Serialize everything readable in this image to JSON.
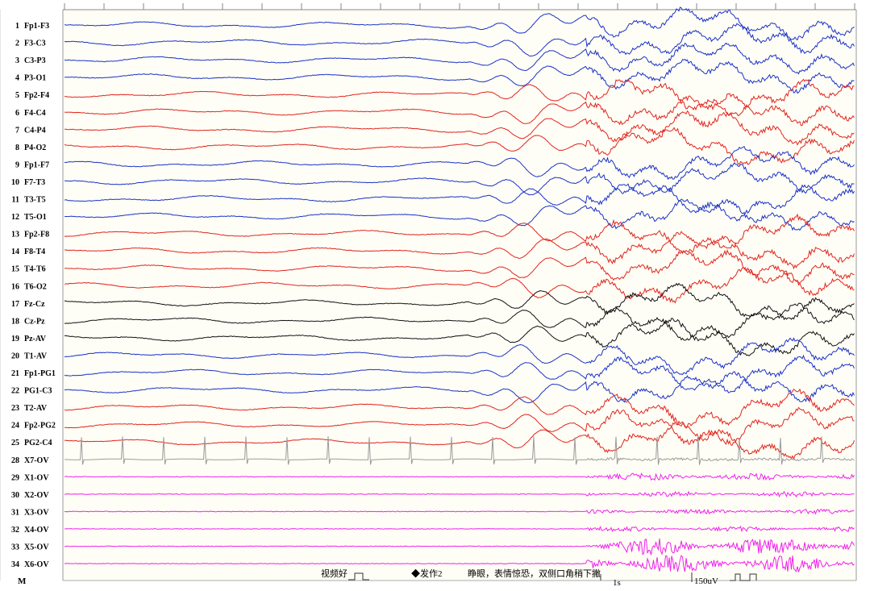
{
  "channels": [
    {
      "num": "1",
      "label": "Fp1-F3",
      "color": "#1a32c8"
    },
    {
      "num": "2",
      "label": "F3-C3",
      "color": "#1a32c8"
    },
    {
      "num": "3",
      "label": "C3-P3",
      "color": "#1a32c8"
    },
    {
      "num": "4",
      "label": "P3-O1",
      "color": "#1a32c8"
    },
    {
      "num": "5",
      "label": "Fp2-F4",
      "color": "#e0251e"
    },
    {
      "num": "6",
      "label": "F4-C4",
      "color": "#e0251e"
    },
    {
      "num": "7",
      "label": "C4-P4",
      "color": "#e0251e"
    },
    {
      "num": "8",
      "label": "P4-O2",
      "color": "#e0251e"
    },
    {
      "num": "9",
      "label": "Fp1-F7",
      "color": "#1a32c8"
    },
    {
      "num": "10",
      "label": "F7-T3",
      "color": "#1a32c8"
    },
    {
      "num": "11",
      "label": "T3-T5",
      "color": "#1a32c8"
    },
    {
      "num": "12",
      "label": "T5-O1",
      "color": "#1a32c8"
    },
    {
      "num": "13",
      "label": "Fp2-F8",
      "color": "#e0251e"
    },
    {
      "num": "14",
      "label": "F8-T4",
      "color": "#e0251e"
    },
    {
      "num": "15",
      "label": "T4-T6",
      "color": "#e0251e"
    },
    {
      "num": "16",
      "label": "T6-O2",
      "color": "#e0251e"
    },
    {
      "num": "17",
      "label": "Fz-Cz",
      "color": "#111111"
    },
    {
      "num": "18",
      "label": "Cz-Pz",
      "color": "#111111"
    },
    {
      "num": "19",
      "label": "Pz-AV",
      "color": "#111111"
    },
    {
      "num": "20",
      "label": "T1-AV",
      "color": "#1a32c8"
    },
    {
      "num": "21",
      "label": "Fp1-PG1",
      "color": "#1a32c8"
    },
    {
      "num": "22",
      "label": "PG1-C3",
      "color": "#1a32c8"
    },
    {
      "num": "23",
      "label": "T2-AV",
      "color": "#e0251e"
    },
    {
      "num": "24",
      "label": "Fp2-PG2",
      "color": "#e0251e"
    },
    {
      "num": "25",
      "label": "PG2-C4",
      "color": "#e0251e"
    },
    {
      "num": "28",
      "label": "X7-OV",
      "color": "#9a9a9a"
    },
    {
      "num": "29",
      "label": "X1-OV",
      "color": "#ee22ee"
    },
    {
      "num": "30",
      "label": "X2-OV",
      "color": "#ee22ee"
    },
    {
      "num": "31",
      "label": "X3-OV",
      "color": "#ee22ee"
    },
    {
      "num": "32",
      "label": "X4-OV",
      "color": "#ee22ee"
    },
    {
      "num": "33",
      "label": "X5-OV",
      "color": "#ee22ee"
    },
    {
      "num": "34",
      "label": "X6-OV",
      "color": "#ee22ee"
    }
  ],
  "bottom_row": {
    "marker_label": "M",
    "annotations": [
      {
        "id": "annot-video",
        "text": "视频好"
      },
      {
        "id": "annot-seizure",
        "text": "◆发作2"
      },
      {
        "id": "annot-description",
        "text": "睁眼，表情惊恐，双侧口角稍下撇"
      }
    ],
    "time_scale": "1s",
    "amplitude_scale": "150uV"
  },
  "colors": {
    "left_hemisphere": "#1a32c8",
    "right_hemisphere": "#e0251e",
    "midline": "#111111",
    "ecg": "#9a9a9a",
    "emg": "#ee22ee",
    "background": "#fffef6"
  },
  "chart_data": {
    "type": "line",
    "description_free": true,
    "x_unit": "s",
    "onset_fraction_of_record": 0.51,
    "emg_onset_fraction_of_record": 0.66,
    "series": [
      {
        "name": "Fp1-F3"
      },
      {
        "name": "F3-C3"
      },
      {
        "name": "C3-P3"
      },
      {
        "name": "P3-O1"
      },
      {
        "name": "Fp2-F4"
      },
      {
        "name": "F4-C4"
      },
      {
        "name": "C4-P4"
      },
      {
        "name": "P4-O2"
      },
      {
        "name": "Fp1-F7"
      },
      {
        "name": "F7-T3"
      },
      {
        "name": "T3-T5"
      },
      {
        "name": "T5-O1"
      },
      {
        "name": "Fp2-F8"
      },
      {
        "name": "F8-T4"
      },
      {
        "name": "T4-T6"
      },
      {
        "name": "T6-O2"
      },
      {
        "name": "Fz-Cz"
      },
      {
        "name": "Cz-Pz"
      },
      {
        "name": "Pz-AV"
      },
      {
        "name": "T1-AV"
      },
      {
        "name": "Fp1-PG1"
      },
      {
        "name": "PG1-C3"
      },
      {
        "name": "T2-AV"
      },
      {
        "name": "Fp2-PG2"
      },
      {
        "name": "PG2-C4"
      },
      {
        "name": "X7-OV"
      },
      {
        "name": "X1-OV"
      },
      {
        "name": "X2-OV"
      },
      {
        "name": "X3-OV"
      },
      {
        "name": "X4-OV"
      },
      {
        "name": "X5-OV"
      },
      {
        "name": "X6-OV"
      }
    ]
  }
}
